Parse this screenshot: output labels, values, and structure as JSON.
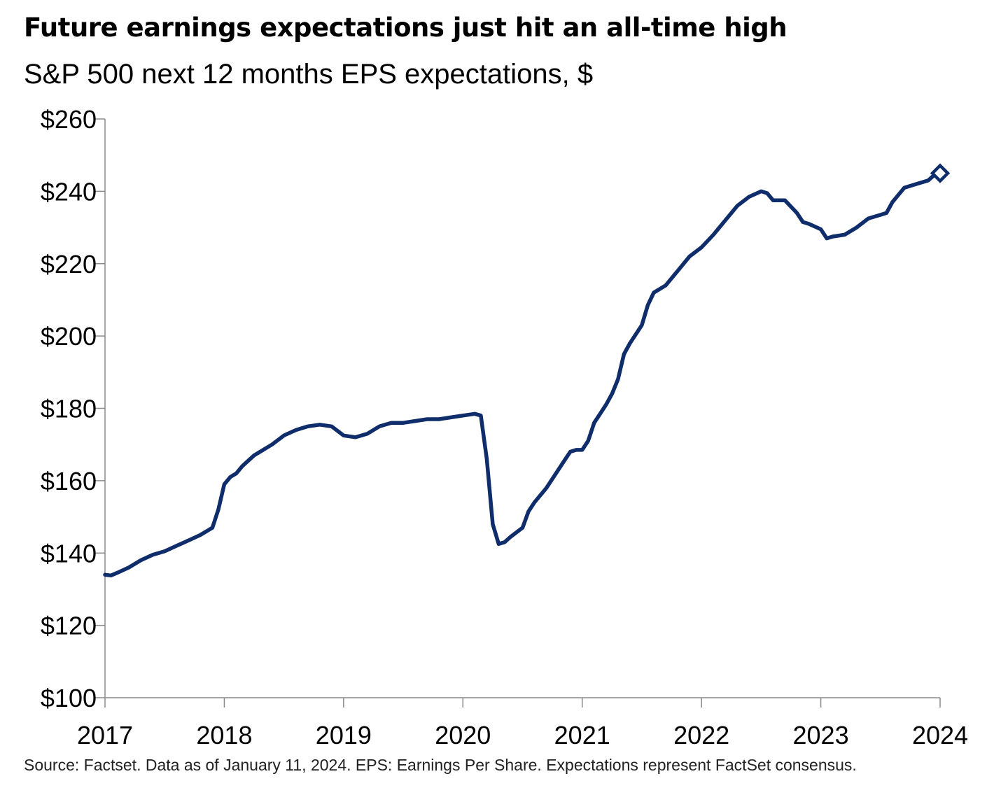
{
  "title": "Future earnings expectations just hit an all-time high",
  "subtitle": "S&P 500 next 12 months EPS expectations, $",
  "source": "Source: Factset. Data as of January 11, 2024. EPS: Earnings Per Share. Expectations represent FactSet consensus.",
  "colors": {
    "line": "#0f2d6b",
    "axis": "#8a8a8a"
  },
  "chart_data": {
    "type": "line",
    "title": "Future earnings expectations just hit an all-time high",
    "subtitle": "S&P 500 next 12 months EPS expectations, $",
    "ylim": [
      100,
      260
    ],
    "xlim": [
      2017,
      2024
    ],
    "y_ticks": [
      100,
      120,
      140,
      160,
      180,
      200,
      220,
      240,
      260
    ],
    "y_tick_labels": [
      "$100",
      "$120",
      "$140",
      "$160",
      "$180",
      "$200",
      "$220",
      "$240",
      "$260"
    ],
    "x_ticks": [
      2017,
      2018,
      2019,
      2020,
      2021,
      2022,
      2023,
      2024
    ],
    "x_tick_labels": [
      "2017",
      "2018",
      "2019",
      "2020",
      "2021",
      "2022",
      "2023",
      "2024"
    ],
    "grid": false,
    "legend": "none",
    "series": [
      {
        "x": [
          2017.0,
          2017.05,
          2017.1,
          2017.2,
          2017.3,
          2017.4,
          2017.5,
          2017.6,
          2017.7,
          2017.8,
          2017.9,
          2017.95,
          2018.0,
          2018.05,
          2018.1,
          2018.15,
          2018.25,
          2018.3,
          2018.4,
          2018.5,
          2018.6,
          2018.7,
          2018.8,
          2018.9,
          2019.0,
          2019.1,
          2019.2,
          2019.3,
          2019.4,
          2019.5,
          2019.6,
          2019.7,
          2019.8,
          2019.9,
          2020.0,
          2020.1,
          2020.15,
          2020.2,
          2020.25,
          2020.3,
          2020.35,
          2020.4,
          2020.5,
          2020.55,
          2020.6,
          2020.7,
          2020.8,
          2020.85,
          2020.9,
          2020.95,
          2021.0,
          2021.05,
          2021.1,
          2021.15,
          2021.2,
          2021.25,
          2021.3,
          2021.35,
          2021.4,
          2021.5,
          2021.55,
          2021.6,
          2021.7,
          2021.8,
          2021.9,
          2022.0,
          2022.1,
          2022.2,
          2022.3,
          2022.4,
          2022.5,
          2022.55,
          2022.6,
          2022.7,
          2022.8,
          2022.85,
          2022.9,
          2023.0,
          2023.05,
          2023.1,
          2023.2,
          2023.3,
          2023.4,
          2023.5,
          2023.55,
          2023.6,
          2023.7,
          2023.8,
          2023.9,
          2023.95
        ],
        "y": [
          134,
          133.8,
          134.5,
          136,
          138,
          139.5,
          140.5,
          142,
          143.5,
          145,
          147,
          152,
          159,
          161,
          162,
          164,
          167,
          168,
          170,
          172.5,
          174,
          175,
          175.5,
          175,
          172.5,
          172,
          173,
          175,
          176,
          176,
          176.5,
          177,
          177,
          177.5,
          178,
          178.5,
          178,
          166,
          148,
          142.5,
          143,
          144.5,
          147,
          151.5,
          154,
          158,
          163,
          165.5,
          168,
          168.5,
          168.5,
          171,
          176,
          178.5,
          181,
          184,
          188,
          195,
          198,
          203,
          208.5,
          212,
          214,
          218,
          222,
          224.5,
          228,
          232,
          236,
          238.5,
          240,
          239.5,
          237.5,
          237.5,
          234,
          231.5,
          231,
          229.5,
          227,
          227.5,
          228,
          230,
          232.5,
          233.5,
          234,
          237,
          241,
          242,
          243,
          244.5
        ]
      }
    ],
    "marker": {
      "x": 2024.0,
      "y": 245,
      "shape": "diamond"
    }
  }
}
